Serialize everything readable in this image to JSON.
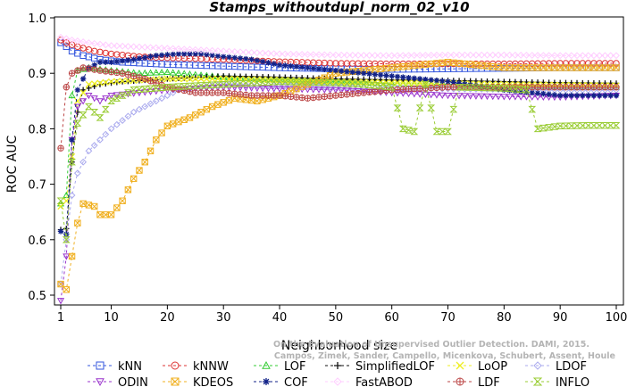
{
  "chart_data": {
    "type": "line",
    "title": "Stamps_withoutdupl_norm_02_v10",
    "xlabel": "Neighborhood size",
    "ylabel": "ROC AUC",
    "xlim": [
      1,
      100
    ],
    "ylim": [
      0.46,
      1.0
    ],
    "xticks": [
      1,
      10,
      20,
      30,
      40,
      50,
      60,
      70,
      80,
      90,
      100
    ],
    "yticks": [
      0.5,
      0.6,
      0.7,
      0.8,
      0.9,
      1.0
    ],
    "ytick_labels": [
      "0.5",
      "0.6",
      "0.7",
      "0.8",
      "0.9",
      "1.0"
    ],
    "grid": false,
    "legend_position": "bottom",
    "credit_lines": [
      "Campos, Zimek, Sander, Campello, Micenkova, Schubert, Assent, Houle",
      "On the Evaluation of Unsupervised Outlier Detection. DAMI, 2015."
    ],
    "series": [
      {
        "name": "kNN",
        "color": "#3355dd",
        "marker": "square",
        "points": [
          [
            1,
            0.955
          ],
          [
            2,
            0.948
          ],
          [
            3,
            0.94
          ],
          [
            5,
            0.932
          ],
          [
            8,
            0.925
          ],
          [
            12,
            0.92
          ],
          [
            20,
            0.916
          ],
          [
            30,
            0.913
          ],
          [
            40,
            0.91
          ],
          [
            50,
            0.908
          ],
          [
            60,
            0.907
          ],
          [
            70,
            0.908
          ],
          [
            80,
            0.909
          ],
          [
            90,
            0.91
          ],
          [
            100,
            0.91
          ]
        ]
      },
      {
        "name": "kNNW",
        "color": "#dd3333",
        "marker": "circle",
        "points": [
          [
            1,
            0.96
          ],
          [
            2,
            0.955
          ],
          [
            4,
            0.948
          ],
          [
            7,
            0.94
          ],
          [
            10,
            0.935
          ],
          [
            15,
            0.93
          ],
          [
            20,
            0.928
          ],
          [
            30,
            0.925
          ],
          [
            40,
            0.921
          ],
          [
            50,
            0.918
          ],
          [
            60,
            0.917
          ],
          [
            70,
            0.917
          ],
          [
            80,
            0.917
          ],
          [
            90,
            0.918
          ],
          [
            100,
            0.918
          ]
        ]
      },
      {
        "name": "LOF",
        "color": "#33cc33",
        "marker": "triangle-up",
        "points": [
          [
            1,
            0.665
          ],
          [
            2,
            0.68
          ],
          [
            3,
            0.86
          ],
          [
            4,
            0.905
          ],
          [
            6,
            0.91
          ],
          [
            10,
            0.905
          ],
          [
            15,
            0.9
          ],
          [
            20,
            0.902
          ],
          [
            30,
            0.893
          ],
          [
            40,
            0.888
          ],
          [
            50,
            0.885
          ],
          [
            60,
            0.882
          ],
          [
            70,
            0.88
          ],
          [
            80,
            0.878
          ],
          [
            90,
            0.876
          ],
          [
            100,
            0.875
          ]
        ]
      },
      {
        "name": "SimplifiedLOF",
        "color": "#111111",
        "marker": "plus",
        "points": [
          [
            1,
            0.618
          ],
          [
            2,
            0.62
          ],
          [
            3,
            0.74
          ],
          [
            4,
            0.83
          ],
          [
            5,
            0.87
          ],
          [
            8,
            0.88
          ],
          [
            12,
            0.885
          ],
          [
            20,
            0.89
          ],
          [
            30,
            0.895
          ],
          [
            40,
            0.893
          ],
          [
            50,
            0.89
          ],
          [
            60,
            0.888
          ],
          [
            70,
            0.887
          ],
          [
            80,
            0.885
          ],
          [
            90,
            0.883
          ],
          [
            100,
            0.882
          ]
        ]
      },
      {
        "name": "LoOP",
        "color": "#eeee22",
        "marker": "x",
        "points": [
          [
            1,
            0.66
          ],
          [
            2,
            0.67
          ],
          [
            3,
            0.75
          ],
          [
            4,
            0.85
          ],
          [
            6,
            0.88
          ],
          [
            10,
            0.885
          ],
          [
            20,
            0.89
          ],
          [
            30,
            0.89
          ],
          [
            40,
            0.888
          ],
          [
            50,
            0.885
          ],
          [
            60,
            0.883
          ],
          [
            70,
            0.882
          ],
          [
            80,
            0.88
          ],
          [
            90,
            0.879
          ],
          [
            100,
            0.878
          ]
        ]
      },
      {
        "name": "LDOF",
        "color": "#aaaaee",
        "marker": "diamond",
        "points": [
          [
            1,
            0.52
          ],
          [
            2,
            0.6
          ],
          [
            3,
            0.68
          ],
          [
            4,
            0.72
          ],
          [
            6,
            0.76
          ],
          [
            8,
            0.78
          ],
          [
            10,
            0.8
          ],
          [
            14,
            0.83
          ],
          [
            18,
            0.85
          ],
          [
            22,
            0.87
          ],
          [
            26,
            0.875
          ],
          [
            30,
            0.88
          ],
          [
            40,
            0.878
          ],
          [
            50,
            0.875
          ],
          [
            60,
            0.873
          ],
          [
            70,
            0.872
          ],
          [
            80,
            0.871
          ],
          [
            90,
            0.87
          ],
          [
            100,
            0.87
          ]
        ]
      },
      {
        "name": "ODIN",
        "color": "#9933cc",
        "marker": "triangle-down",
        "points": [
          [
            1,
            0.49
          ],
          [
            2,
            0.57
          ],
          [
            3,
            0.78
          ],
          [
            4,
            0.84
          ],
          [
            6,
            0.86
          ],
          [
            8,
            0.85
          ],
          [
            10,
            0.86
          ],
          [
            20,
            0.87
          ],
          [
            30,
            0.875
          ],
          [
            40,
            0.872
          ],
          [
            50,
            0.87
          ],
          [
            60,
            0.865
          ],
          [
            70,
            0.86
          ],
          [
            80,
            0.858
          ],
          [
            90,
            0.857
          ],
          [
            100,
            0.86
          ]
        ]
      },
      {
        "name": "KDEOS",
        "color": "#f0b020",
        "marker": "square-x",
        "points": [
          [
            1,
            0.52
          ],
          [
            2,
            0.51
          ],
          [
            3,
            0.57
          ],
          [
            4,
            0.63
          ],
          [
            5,
            0.665
          ],
          [
            7,
            0.66
          ],
          [
            8,
            0.645
          ],
          [
            10,
            0.645
          ],
          [
            12,
            0.67
          ],
          [
            14,
            0.71
          ],
          [
            16,
            0.74
          ],
          [
            18,
            0.78
          ],
          [
            20,
            0.805
          ],
          [
            24,
            0.82
          ],
          [
            28,
            0.84
          ],
          [
            32,
            0.855
          ],
          [
            36,
            0.85
          ],
          [
            40,
            0.86
          ],
          [
            45,
            0.88
          ],
          [
            50,
            0.9
          ],
          [
            55,
            0.905
          ],
          [
            60,
            0.91
          ],
          [
            65,
            0.915
          ],
          [
            70,
            0.92
          ],
          [
            75,
            0.915
          ],
          [
            80,
            0.91
          ],
          [
            85,
            0.91
          ],
          [
            90,
            0.91
          ],
          [
            95,
            0.91
          ],
          [
            100,
            0.91
          ]
        ]
      },
      {
        "name": "COF",
        "color": "#112288",
        "marker": "asterisk",
        "points": [
          [
            1,
            0.615
          ],
          [
            2,
            0.61
          ],
          [
            3,
            0.78
          ],
          [
            4,
            0.87
          ],
          [
            6,
            0.91
          ],
          [
            8,
            0.92
          ],
          [
            10,
            0.92
          ],
          [
            14,
            0.925
          ],
          [
            18,
            0.932
          ],
          [
            22,
            0.935
          ],
          [
            26,
            0.935
          ],
          [
            30,
            0.93
          ],
          [
            35,
            0.925
          ],
          [
            40,
            0.915
          ],
          [
            50,
            0.905
          ],
          [
            60,
            0.895
          ],
          [
            70,
            0.885
          ],
          [
            80,
            0.87
          ],
          [
            90,
            0.86
          ],
          [
            100,
            0.86
          ]
        ]
      },
      {
        "name": "FastABOD",
        "color": "#ffccff",
        "marker": "diamond",
        "points": [
          [
            1,
            0.965
          ],
          [
            3,
            0.96
          ],
          [
            6,
            0.955
          ],
          [
            10,
            0.95
          ],
          [
            20,
            0.945
          ],
          [
            30,
            0.94
          ],
          [
            40,
            0.935
          ],
          [
            50,
            0.933
          ],
          [
            60,
            0.932
          ],
          [
            70,
            0.933
          ],
          [
            80,
            0.933
          ],
          [
            90,
            0.932
          ],
          [
            100,
            0.932
          ]
        ]
      },
      {
        "name": "LDF",
        "color": "#bb4444",
        "marker": "circle-plus",
        "points": [
          [
            1,
            0.765
          ],
          [
            2,
            0.875
          ],
          [
            3,
            0.9
          ],
          [
            5,
            0.91
          ],
          [
            8,
            0.905
          ],
          [
            12,
            0.9
          ],
          [
            16,
            0.89
          ],
          [
            20,
            0.875
          ],
          [
            25,
            0.865
          ],
          [
            30,
            0.865
          ],
          [
            35,
            0.86
          ],
          [
            40,
            0.86
          ],
          [
            45,
            0.855
          ],
          [
            50,
            0.86
          ],
          [
            55,
            0.865
          ],
          [
            60,
            0.87
          ],
          [
            70,
            0.875
          ],
          [
            80,
            0.875
          ],
          [
            90,
            0.875
          ],
          [
            100,
            0.875
          ]
        ]
      },
      {
        "name": "INFLO",
        "color": "#99cc33",
        "marker": "hourglass",
        "points": [
          [
            1,
            0.67
          ],
          [
            2,
            0.6
          ],
          [
            3,
            0.74
          ],
          [
            4,
            0.81
          ],
          [
            6,
            0.84
          ],
          [
            8,
            0.82
          ],
          [
            10,
            0.85
          ],
          [
            14,
            0.87
          ],
          [
            20,
            0.875
          ],
          [
            30,
            0.88
          ],
          [
            40,
            0.885
          ],
          [
            50,
            0.883
          ],
          [
            55,
            0.88
          ],
          [
            60,
            0.875
          ],
          [
            62,
            0.8
          ],
          [
            64,
            0.795
          ],
          [
            66,
            0.88
          ],
          [
            68,
            0.795
          ],
          [
            70,
            0.795
          ],
          [
            72,
            0.875
          ],
          [
            80,
            0.873
          ],
          [
            84,
            0.87
          ],
          [
            86,
            0.8
          ],
          [
            90,
            0.805
          ],
          [
            95,
            0.806
          ],
          [
            100,
            0.806
          ]
        ]
      }
    ]
  }
}
